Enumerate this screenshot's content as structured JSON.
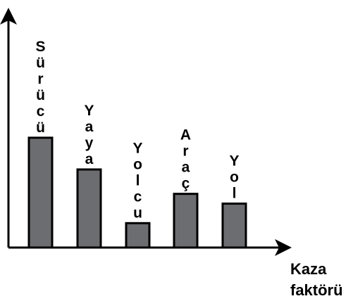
{
  "chart_data": {
    "type": "bar",
    "categories": [
      "Sürücü",
      "Yaya",
      "Yolcu",
      "Araç",
      "Yol"
    ],
    "values": [
      45,
      32,
      10,
      22,
      18
    ],
    "ylim": [
      0,
      100
    ],
    "xlabel": "Kaza faktörü",
    "xlabel_lines": [
      "Kaza",
      "faktörü"
    ],
    "ylabel": "",
    "title": "",
    "grid": false,
    "colors": {
      "bar_fill": "#6b6d70",
      "bar_stroke": "#000000",
      "axis": "#000000"
    }
  }
}
